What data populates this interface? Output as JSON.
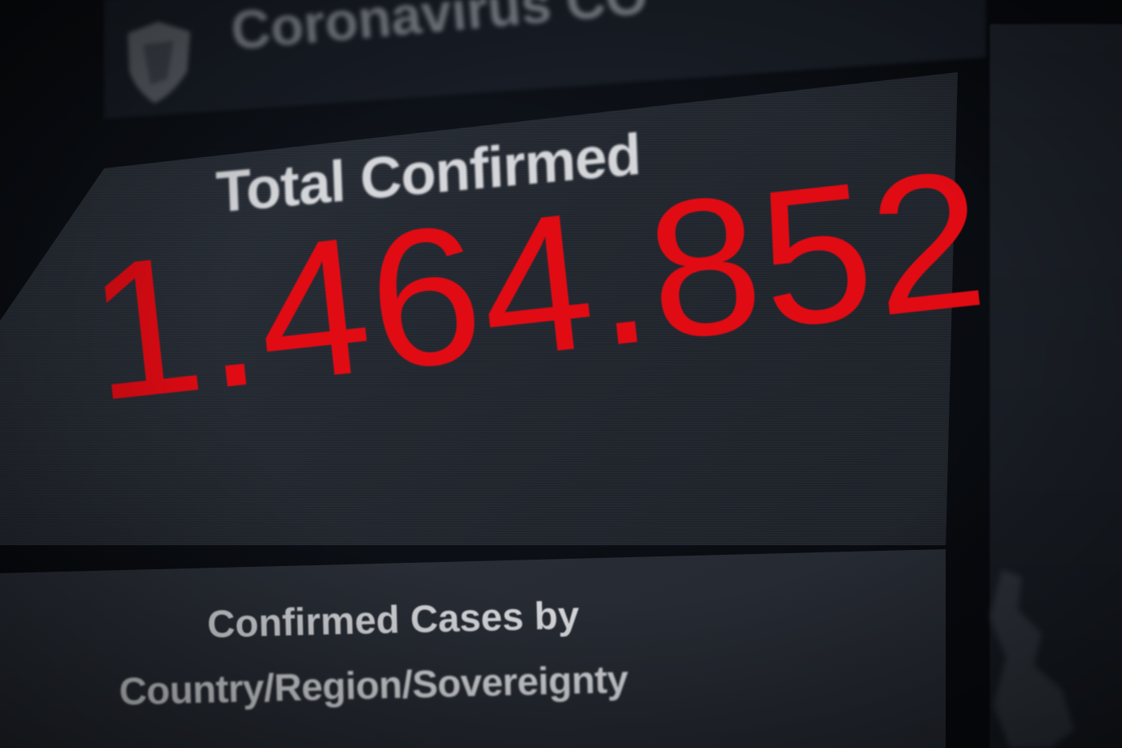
{
  "header": {
    "app_title": "Coronavirus CO",
    "logo_icon": "shield-icon"
  },
  "total_confirmed": {
    "label": "Total Confirmed",
    "value": "1.464.852",
    "value_color": "#e10b14"
  },
  "cases_panel": {
    "title_line1": "Confirmed Cases by",
    "title_line2": "Country/Region/Sovereignty"
  },
  "colors": {
    "background": "#06080c",
    "panel": "#262b33",
    "label_text": "#d4d6da",
    "accent_red": "#e10b14"
  }
}
